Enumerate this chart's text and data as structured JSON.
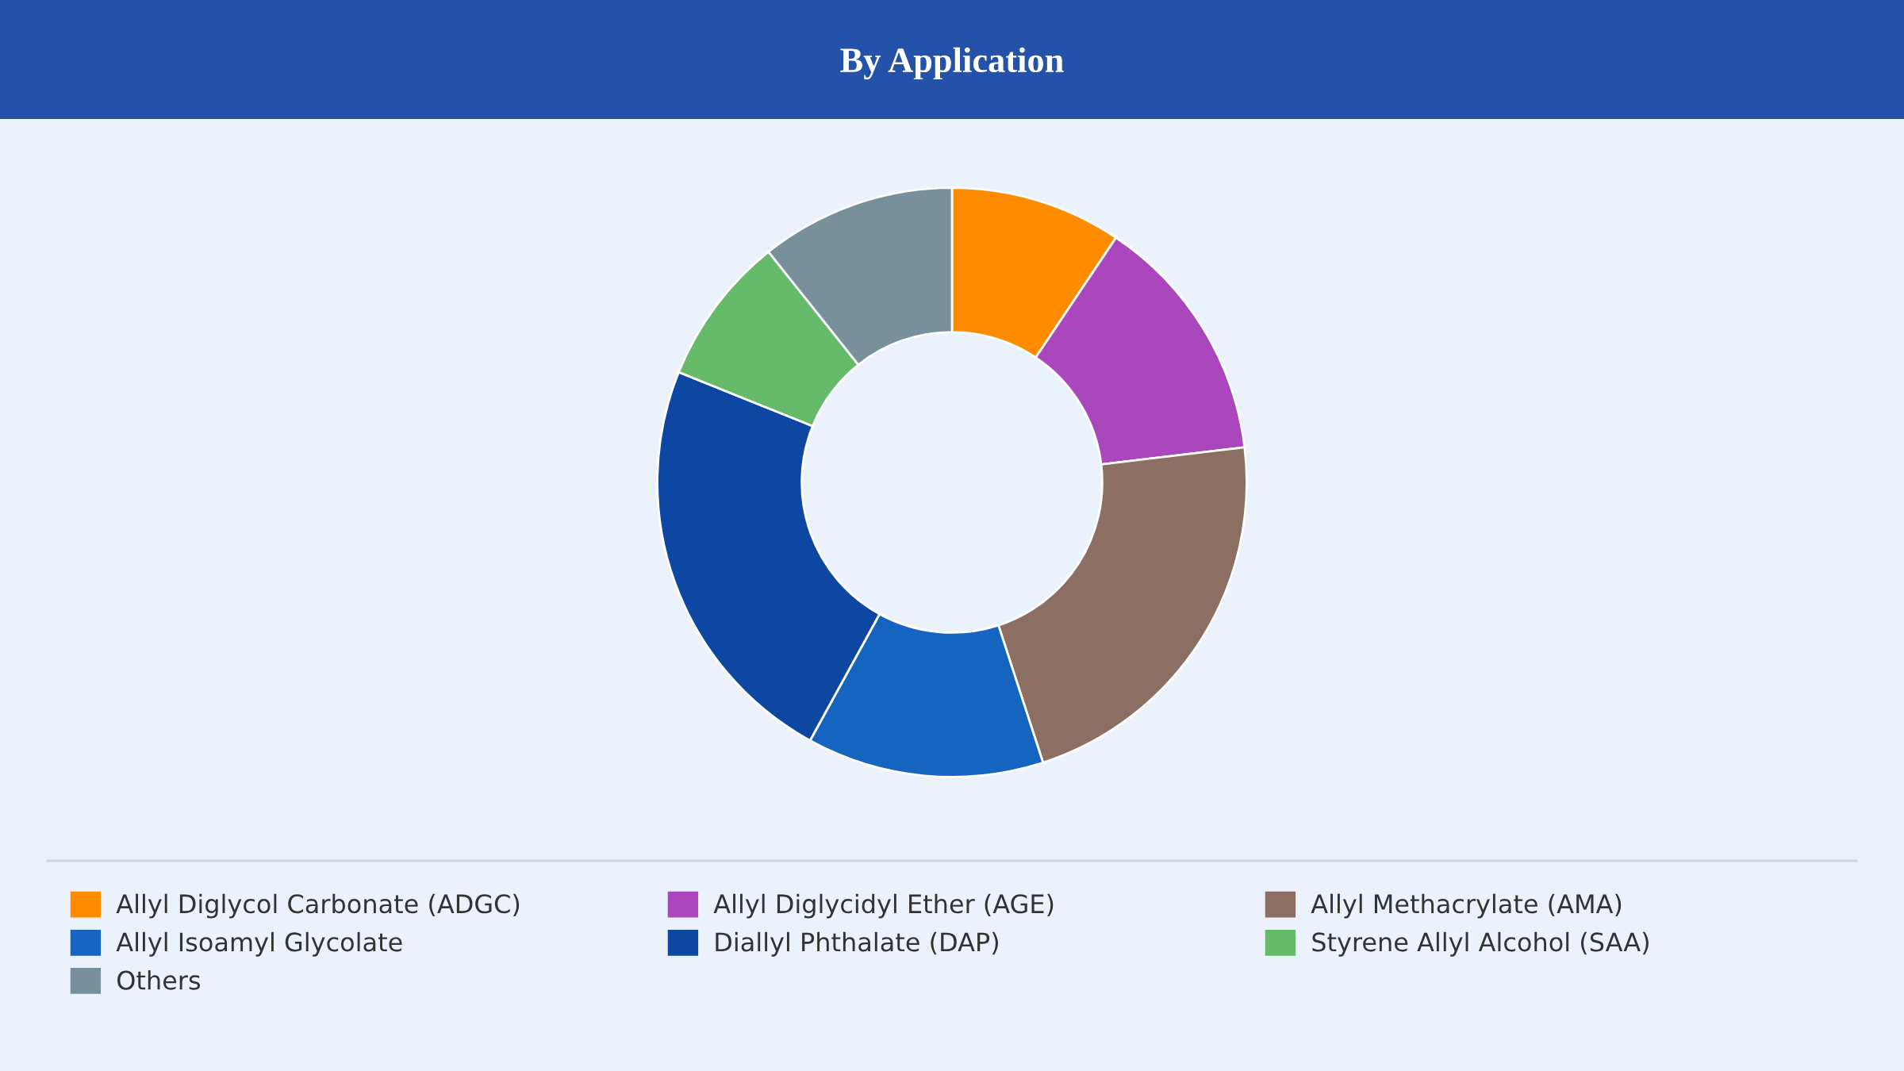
{
  "chart_data": {
    "type": "donut",
    "title": "By Application",
    "categories": [
      "Allyl Diglycol Carbonate (ADGC)",
      "Allyl Diglycidyl Ether (AGE)",
      "Allyl Methacrylate (AMA)",
      "Allyl Isoamyl Glycolate",
      "Diallyl Phthalate (DAP)",
      "Styrene Allyl Alcohol (SAA)",
      "Others"
    ],
    "values": [
      9.4,
      13.7,
      21.9,
      13.0,
      23.1,
      8.2,
      10.7
    ],
    "colors": [
      "#ff8c00",
      "#ab47bc",
      "#8d6e63",
      "#1565c0",
      "#0d47a1",
      "#66bb6a",
      "#78909c"
    ],
    "legend": "bottom"
  }
}
